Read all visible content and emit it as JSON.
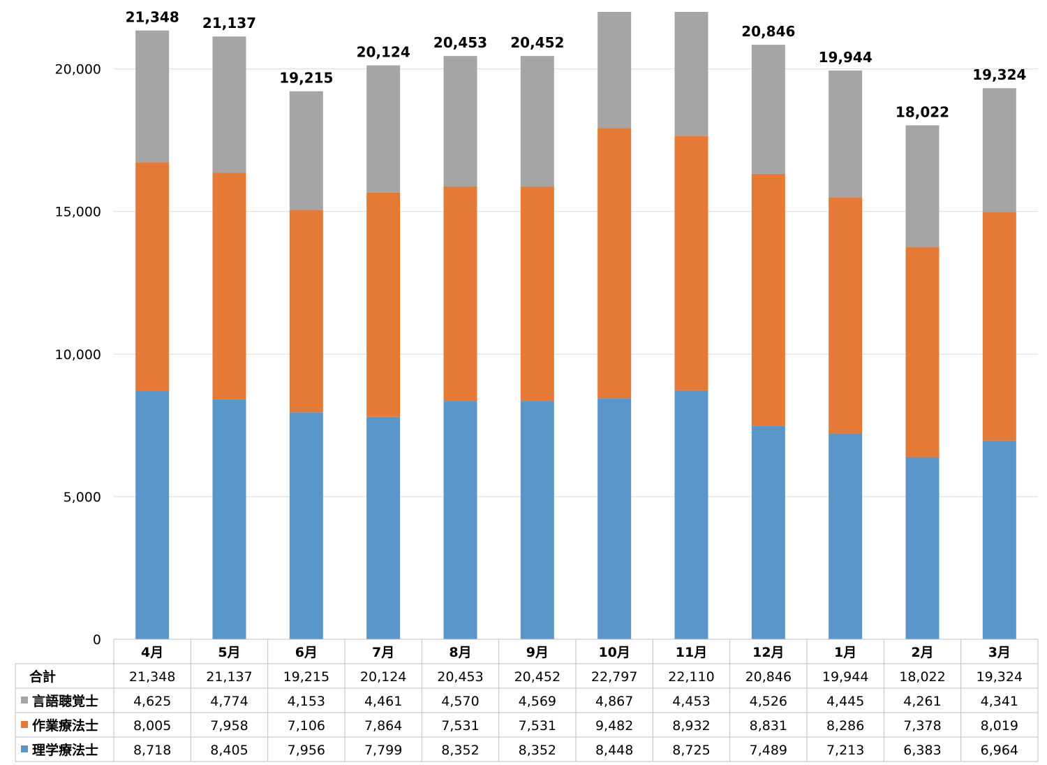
{
  "chart_data": {
    "type": "bar",
    "stacked": true,
    "categories": [
      "4月",
      "5月",
      "6月",
      "7月",
      "8月",
      "9月",
      "10月",
      "11月",
      "12月",
      "1月",
      "2月",
      "3月"
    ],
    "series": [
      {
        "name": "理学療法士",
        "color": "#5b96cb",
        "values": [
          8718,
          8405,
          7956,
          7799,
          8352,
          8352,
          8448,
          8725,
          7489,
          7213,
          6383,
          6964
        ]
      },
      {
        "name": "作業療法士",
        "color": "#e57a37",
        "values": [
          8005,
          7958,
          7106,
          7864,
          7531,
          7531,
          9482,
          8932,
          8831,
          8286,
          7378,
          8019
        ]
      },
      {
        "name": "言語聴覚士",
        "color": "#a5a5a5",
        "values": [
          4625,
          4774,
          4153,
          4461,
          4570,
          4569,
          4867,
          4453,
          4526,
          4445,
          4261,
          4341
        ]
      }
    ],
    "totals_label": "合計",
    "totals": [
      "21,348",
      "21,137",
      "19,215",
      "20,124",
      "20,453",
      "20,452",
      "22,797",
      "22,110",
      "20,846",
      "19,944",
      "18,022",
      "19,324"
    ],
    "top_labels": [
      "21,348",
      "21,137",
      "19,215",
      "20,124",
      "20,453",
      "20,452",
      "",
      "",
      "20,846",
      "19,944",
      "18,022",
      "19,324"
    ],
    "ylim": [
      0,
      22000
    ],
    "yticks": [
      0,
      5000,
      10000,
      15000,
      20000
    ],
    "ytick_labels": [
      "0",
      "5,000",
      "10,000",
      "15,000",
      "20,000"
    ],
    "grid": true,
    "legend": "data-table"
  }
}
